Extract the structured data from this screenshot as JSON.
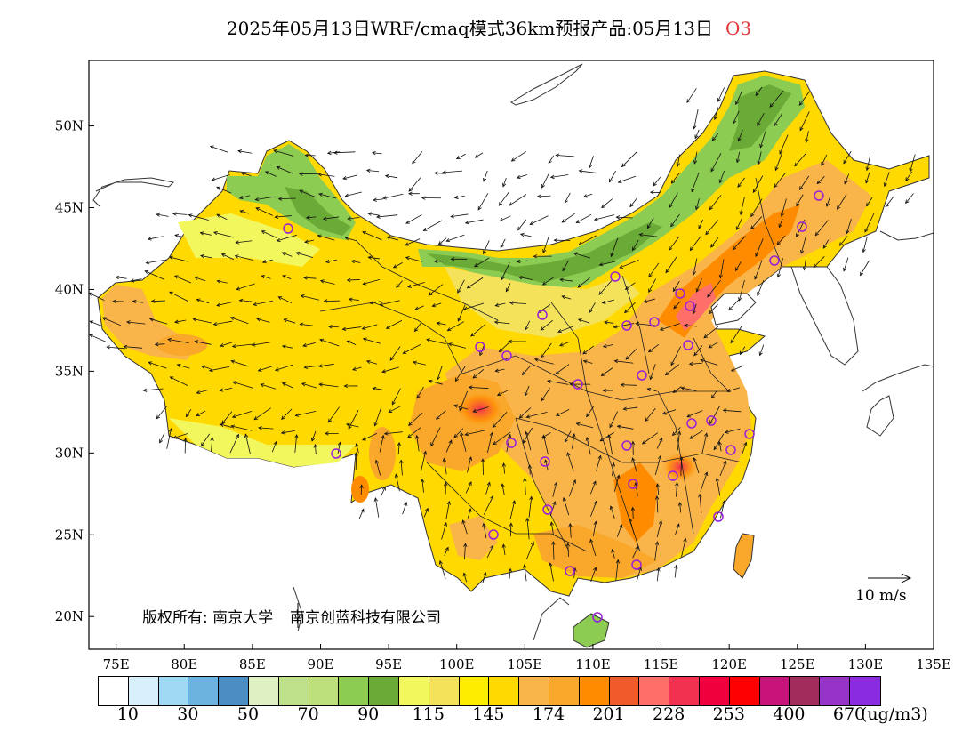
{
  "title": {
    "main": "2025年05月13日WRF/cmaq模式36km预报产品:05月13日",
    "species": "O3",
    "species_color": "#e0353a"
  },
  "map": {
    "lon_ticks": [
      "75E",
      "80E",
      "85E",
      "90E",
      "95E",
      "100E",
      "105E",
      "110E",
      "115E",
      "120E",
      "125E",
      "130E",
      "135E"
    ],
    "lat_ticks": [
      "50N",
      "45N",
      "40N",
      "35N",
      "30N",
      "25N",
      "20N"
    ],
    "lon_range": [
      73,
      135
    ],
    "lat_range": [
      18,
      54
    ]
  },
  "copyright": {
    "label": "版权所有:",
    "org1": "南京大学",
    "org2": "南京创蓝科技有限公司"
  },
  "wind_key": {
    "label": "10 m/s"
  },
  "legend": {
    "colors": [
      "#ffffff",
      "#d7f0fb",
      "#9fd9f4",
      "#6cb3e0",
      "#4a8ec4",
      "#dff0c3",
      "#bfe08a",
      "#bde07c",
      "#8ccc52",
      "#6aaa36",
      "#f2f75e",
      "#f4e35a",
      "#ffed00",
      "#ffd900",
      "#f9b54a",
      "#f9a82b",
      "#ff8c00",
      "#f15a2b",
      "#ff6f6a",
      "#f23050",
      "#f0003c",
      "#ff0000",
      "#c8137a",
      "#a22d5c",
      "#9734c8",
      "#8a2be2"
    ],
    "labels": [
      "10",
      "30",
      "50",
      "70",
      "90",
      "115",
      "145",
      "174",
      "201",
      "228",
      "253",
      "400",
      "670"
    ],
    "unit": "(ug/m3)"
  }
}
